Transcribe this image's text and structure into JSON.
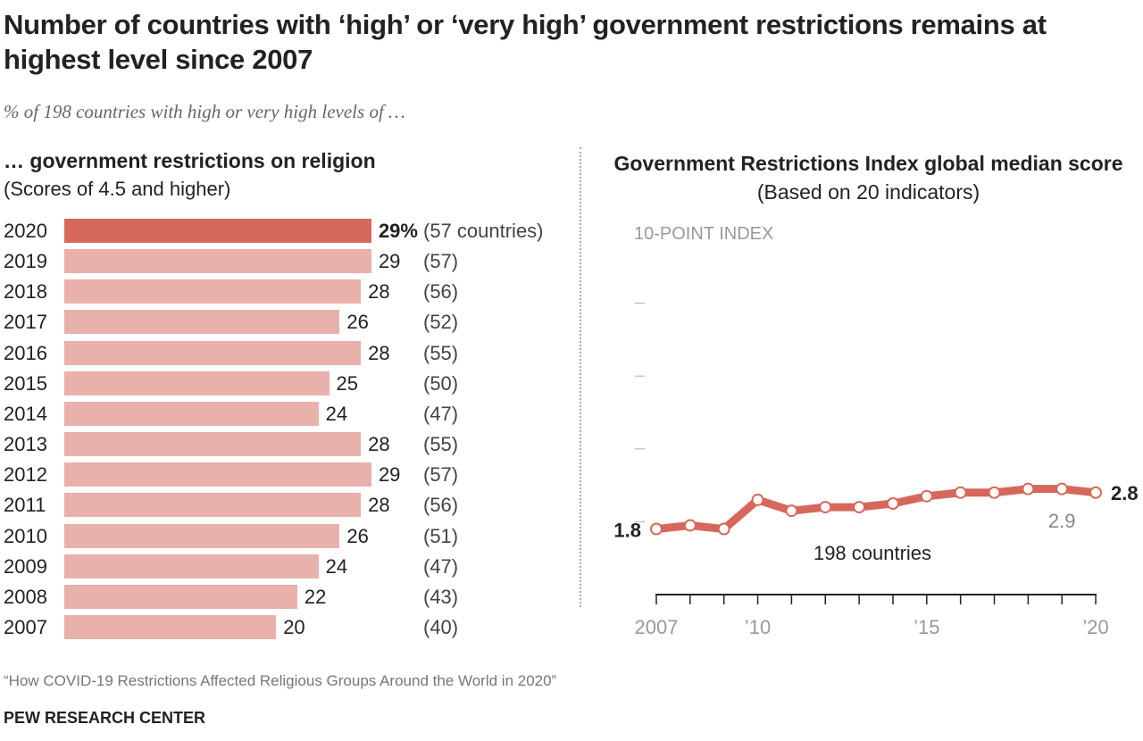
{
  "title": "Number of countries with ‘high’ or ‘very high’ government restrictions remains at highest level since 2007",
  "subtitle": "% of 198 countries with high or very high levels of …",
  "note": "“How COVID-19 Restrictions Affected Religious Groups Around the World in 2020”",
  "brand": "PEW RESEARCH CENTER",
  "colors": {
    "highlight": "#d6685b",
    "bar": "#e9b1ab",
    "line": "#d6685b"
  },
  "chart_data": [
    {
      "type": "bar",
      "orientation": "horizontal",
      "title": "… government restrictions on religion",
      "subtitle": "(Scores of 4.5 and higher)",
      "categories": [
        "2020",
        "2019",
        "2018",
        "2017",
        "2016",
        "2015",
        "2014",
        "2013",
        "2012",
        "2011",
        "2010",
        "2009",
        "2008",
        "2007"
      ],
      "values": [
        29,
        29,
        28,
        26,
        28,
        25,
        24,
        28,
        29,
        28,
        26,
        24,
        22,
        20
      ],
      "value_labels": [
        "29%",
        "29",
        "28",
        "26",
        "28",
        "25",
        "24",
        "28",
        "29",
        "28",
        "26",
        "24",
        "22",
        "20"
      ],
      "count_labels": [
        "(57 countries)",
        "(57)",
        "(56)",
        "(52)",
        "(55)",
        "(50)",
        "(47)",
        "(55)",
        "(57)",
        "(56)",
        "(51)",
        "(47)",
        "(43)",
        "(40)"
      ],
      "highlight": "2020"
    },
    {
      "type": "line",
      "title_bold": "Government Restrictions Index global median score",
      "title_rest": " (Based on 20 indicators)",
      "ylabel": "10-POINT INDEX",
      "ylim": [
        0,
        10
      ],
      "x": [
        2007,
        2008,
        2009,
        2010,
        2011,
        2012,
        2013,
        2014,
        2015,
        2016,
        2017,
        2018,
        2019,
        2020
      ],
      "y": [
        1.8,
        1.9,
        1.8,
        2.6,
        2.3,
        2.4,
        2.4,
        2.5,
        2.7,
        2.8,
        2.8,
        2.9,
        2.9,
        2.8
      ],
      "xtick_labels": {
        "2007": "2007",
        "2010": "’10",
        "2015": "’15",
        "2020": "’20"
      },
      "annotations": {
        "start": "1.8",
        "end": "2.8",
        "peak": "2.9",
        "series": "198 countries"
      }
    }
  ]
}
